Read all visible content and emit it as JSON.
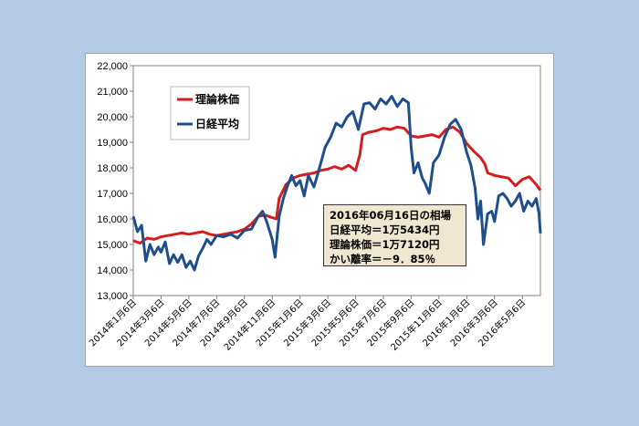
{
  "chart_data": {
    "type": "line",
    "title": "",
    "xlabel": "",
    "ylabel": "",
    "ylim": [
      13000,
      22000
    ],
    "yticks": [
      "13,000",
      "14,000",
      "15,000",
      "16,000",
      "17,000",
      "18,000",
      "19,000",
      "20,000",
      "21,000",
      "22,000"
    ],
    "x_tick_labels": [
      "2014年1月6日",
      "2014年3月6日",
      "2014年5月6日",
      "2014年7月6日",
      "2014年9月6日",
      "2014年11月6日",
      "2015年1月6日",
      "2015年3月6日",
      "2015年5月6日",
      "2015年7月6日",
      "2015年9月6日",
      "2015年11月6日",
      "2016年1月6日",
      "2016年3月6日",
      "2016年5月6日"
    ],
    "x_range_months": [
      0,
      29.3
    ],
    "grid": false,
    "legend_position": "top-left",
    "series": [
      {
        "name": "理論株価",
        "color": "#d21e1e",
        "points": [
          [
            0,
            15150
          ],
          [
            0.5,
            15050
          ],
          [
            1,
            15250
          ],
          [
            1.5,
            15200
          ],
          [
            2,
            15300
          ],
          [
            2.5,
            15350
          ],
          [
            3,
            15400
          ],
          [
            3.5,
            15450
          ],
          [
            4,
            15400
          ],
          [
            4.5,
            15450
          ],
          [
            5,
            15500
          ],
          [
            5.5,
            15400
          ],
          [
            6,
            15350
          ],
          [
            6.5,
            15400
          ],
          [
            7,
            15450
          ],
          [
            7.5,
            15500
          ],
          [
            8,
            15600
          ],
          [
            8.5,
            15800
          ],
          [
            9,
            16100
          ],
          [
            9.5,
            16150
          ],
          [
            10,
            16050
          ],
          [
            10.3,
            16000
          ],
          [
            10.5,
            16800
          ],
          [
            11,
            17350
          ],
          [
            11.5,
            17600
          ],
          [
            12,
            17700
          ],
          [
            12.5,
            17750
          ],
          [
            13,
            17800
          ],
          [
            13.5,
            17900
          ],
          [
            14,
            17950
          ],
          [
            14.5,
            18050
          ],
          [
            15,
            17950
          ],
          [
            15.5,
            18100
          ],
          [
            16,
            17900
          ],
          [
            16.3,
            18500
          ],
          [
            16.5,
            19300
          ],
          [
            17,
            19400
          ],
          [
            17.5,
            19450
          ],
          [
            18,
            19550
          ],
          [
            18.5,
            19500
          ],
          [
            19,
            19600
          ],
          [
            19.5,
            19550
          ],
          [
            20,
            19250
          ],
          [
            20.5,
            19200
          ],
          [
            21,
            19250
          ],
          [
            21.5,
            19300
          ],
          [
            22,
            19200
          ],
          [
            22.5,
            19500
          ],
          [
            23,
            19600
          ],
          [
            23.5,
            19400
          ],
          [
            24,
            18950
          ],
          [
            24.5,
            18650
          ],
          [
            25,
            18400
          ],
          [
            25.3,
            18150
          ],
          [
            25.5,
            17800
          ],
          [
            26,
            17700
          ],
          [
            26.5,
            17650
          ],
          [
            27,
            17600
          ],
          [
            27.5,
            17300
          ],
          [
            28,
            17550
          ],
          [
            28.5,
            17650
          ],
          [
            29,
            17350
          ],
          [
            29.3,
            17120
          ]
        ]
      },
      {
        "name": "日経平均",
        "color": "#1f4e8c",
        "points": [
          [
            0,
            16100
          ],
          [
            0.3,
            15500
          ],
          [
            0.6,
            15750
          ],
          [
            0.9,
            14350
          ],
          [
            1.2,
            15000
          ],
          [
            1.5,
            14600
          ],
          [
            1.8,
            14900
          ],
          [
            2,
            14700
          ],
          [
            2.3,
            15100
          ],
          [
            2.6,
            14250
          ],
          [
            2.9,
            14600
          ],
          [
            3.2,
            14300
          ],
          [
            3.5,
            14600
          ],
          [
            3.8,
            14100
          ],
          [
            4.1,
            14350
          ],
          [
            4.4,
            14000
          ],
          [
            4.7,
            14550
          ],
          [
            5,
            14850
          ],
          [
            5.3,
            15200
          ],
          [
            5.6,
            15000
          ],
          [
            6,
            15350
          ],
          [
            6.5,
            15300
          ],
          [
            7,
            15400
          ],
          [
            7.5,
            15250
          ],
          [
            8,
            15550
          ],
          [
            8.5,
            15600
          ],
          [
            9,
            16100
          ],
          [
            9.3,
            16300
          ],
          [
            9.6,
            15900
          ],
          [
            10,
            15200
          ],
          [
            10.2,
            14500
          ],
          [
            10.5,
            16100
          ],
          [
            10.8,
            16800
          ],
          [
            11.1,
            17300
          ],
          [
            11.4,
            17700
          ],
          [
            11.7,
            17300
          ],
          [
            12,
            17500
          ],
          [
            12.3,
            16900
          ],
          [
            12.6,
            17700
          ],
          [
            13,
            17250
          ],
          [
            13.4,
            18000
          ],
          [
            13.8,
            18800
          ],
          [
            14.2,
            19200
          ],
          [
            14.6,
            19750
          ],
          [
            15,
            19600
          ],
          [
            15.4,
            20000
          ],
          [
            15.8,
            20200
          ],
          [
            16.2,
            19500
          ],
          [
            16.6,
            20500
          ],
          [
            17,
            20550
          ],
          [
            17.4,
            20300
          ],
          [
            17.8,
            20700
          ],
          [
            18.2,
            20500
          ],
          [
            18.6,
            20800
          ],
          [
            19,
            20400
          ],
          [
            19.4,
            20700
          ],
          [
            19.8,
            20550
          ],
          [
            20,
            18800
          ],
          [
            20.2,
            17800
          ],
          [
            20.5,
            18200
          ],
          [
            20.8,
            17600
          ],
          [
            21,
            17400
          ],
          [
            21.3,
            17000
          ],
          [
            21.6,
            18200
          ],
          [
            22,
            18500
          ],
          [
            22.4,
            19200
          ],
          [
            22.8,
            19700
          ],
          [
            23.2,
            19900
          ],
          [
            23.6,
            19500
          ],
          [
            24,
            18600
          ],
          [
            24.3,
            18100
          ],
          [
            24.6,
            17200
          ],
          [
            24.8,
            16000
          ],
          [
            25,
            16700
          ],
          [
            25.2,
            15000
          ],
          [
            25.5,
            16200
          ],
          [
            25.8,
            16300
          ],
          [
            26,
            15900
          ],
          [
            26.3,
            16900
          ],
          [
            26.6,
            17000
          ],
          [
            26.9,
            16800
          ],
          [
            27.2,
            16500
          ],
          [
            27.5,
            16700
          ],
          [
            27.8,
            17000
          ],
          [
            28.1,
            16300
          ],
          [
            28.4,
            16700
          ],
          [
            28.7,
            16500
          ],
          [
            29,
            16800
          ],
          [
            29.2,
            16200
          ],
          [
            29.3,
            15434
          ]
        ]
      }
    ]
  },
  "infobox": {
    "line1": "2016年06月16日の相場",
    "line2": "日経平均＝1万5434円",
    "line3": "理論株価＝1万7120円",
    "line4": "かい離率＝－9．85％"
  }
}
